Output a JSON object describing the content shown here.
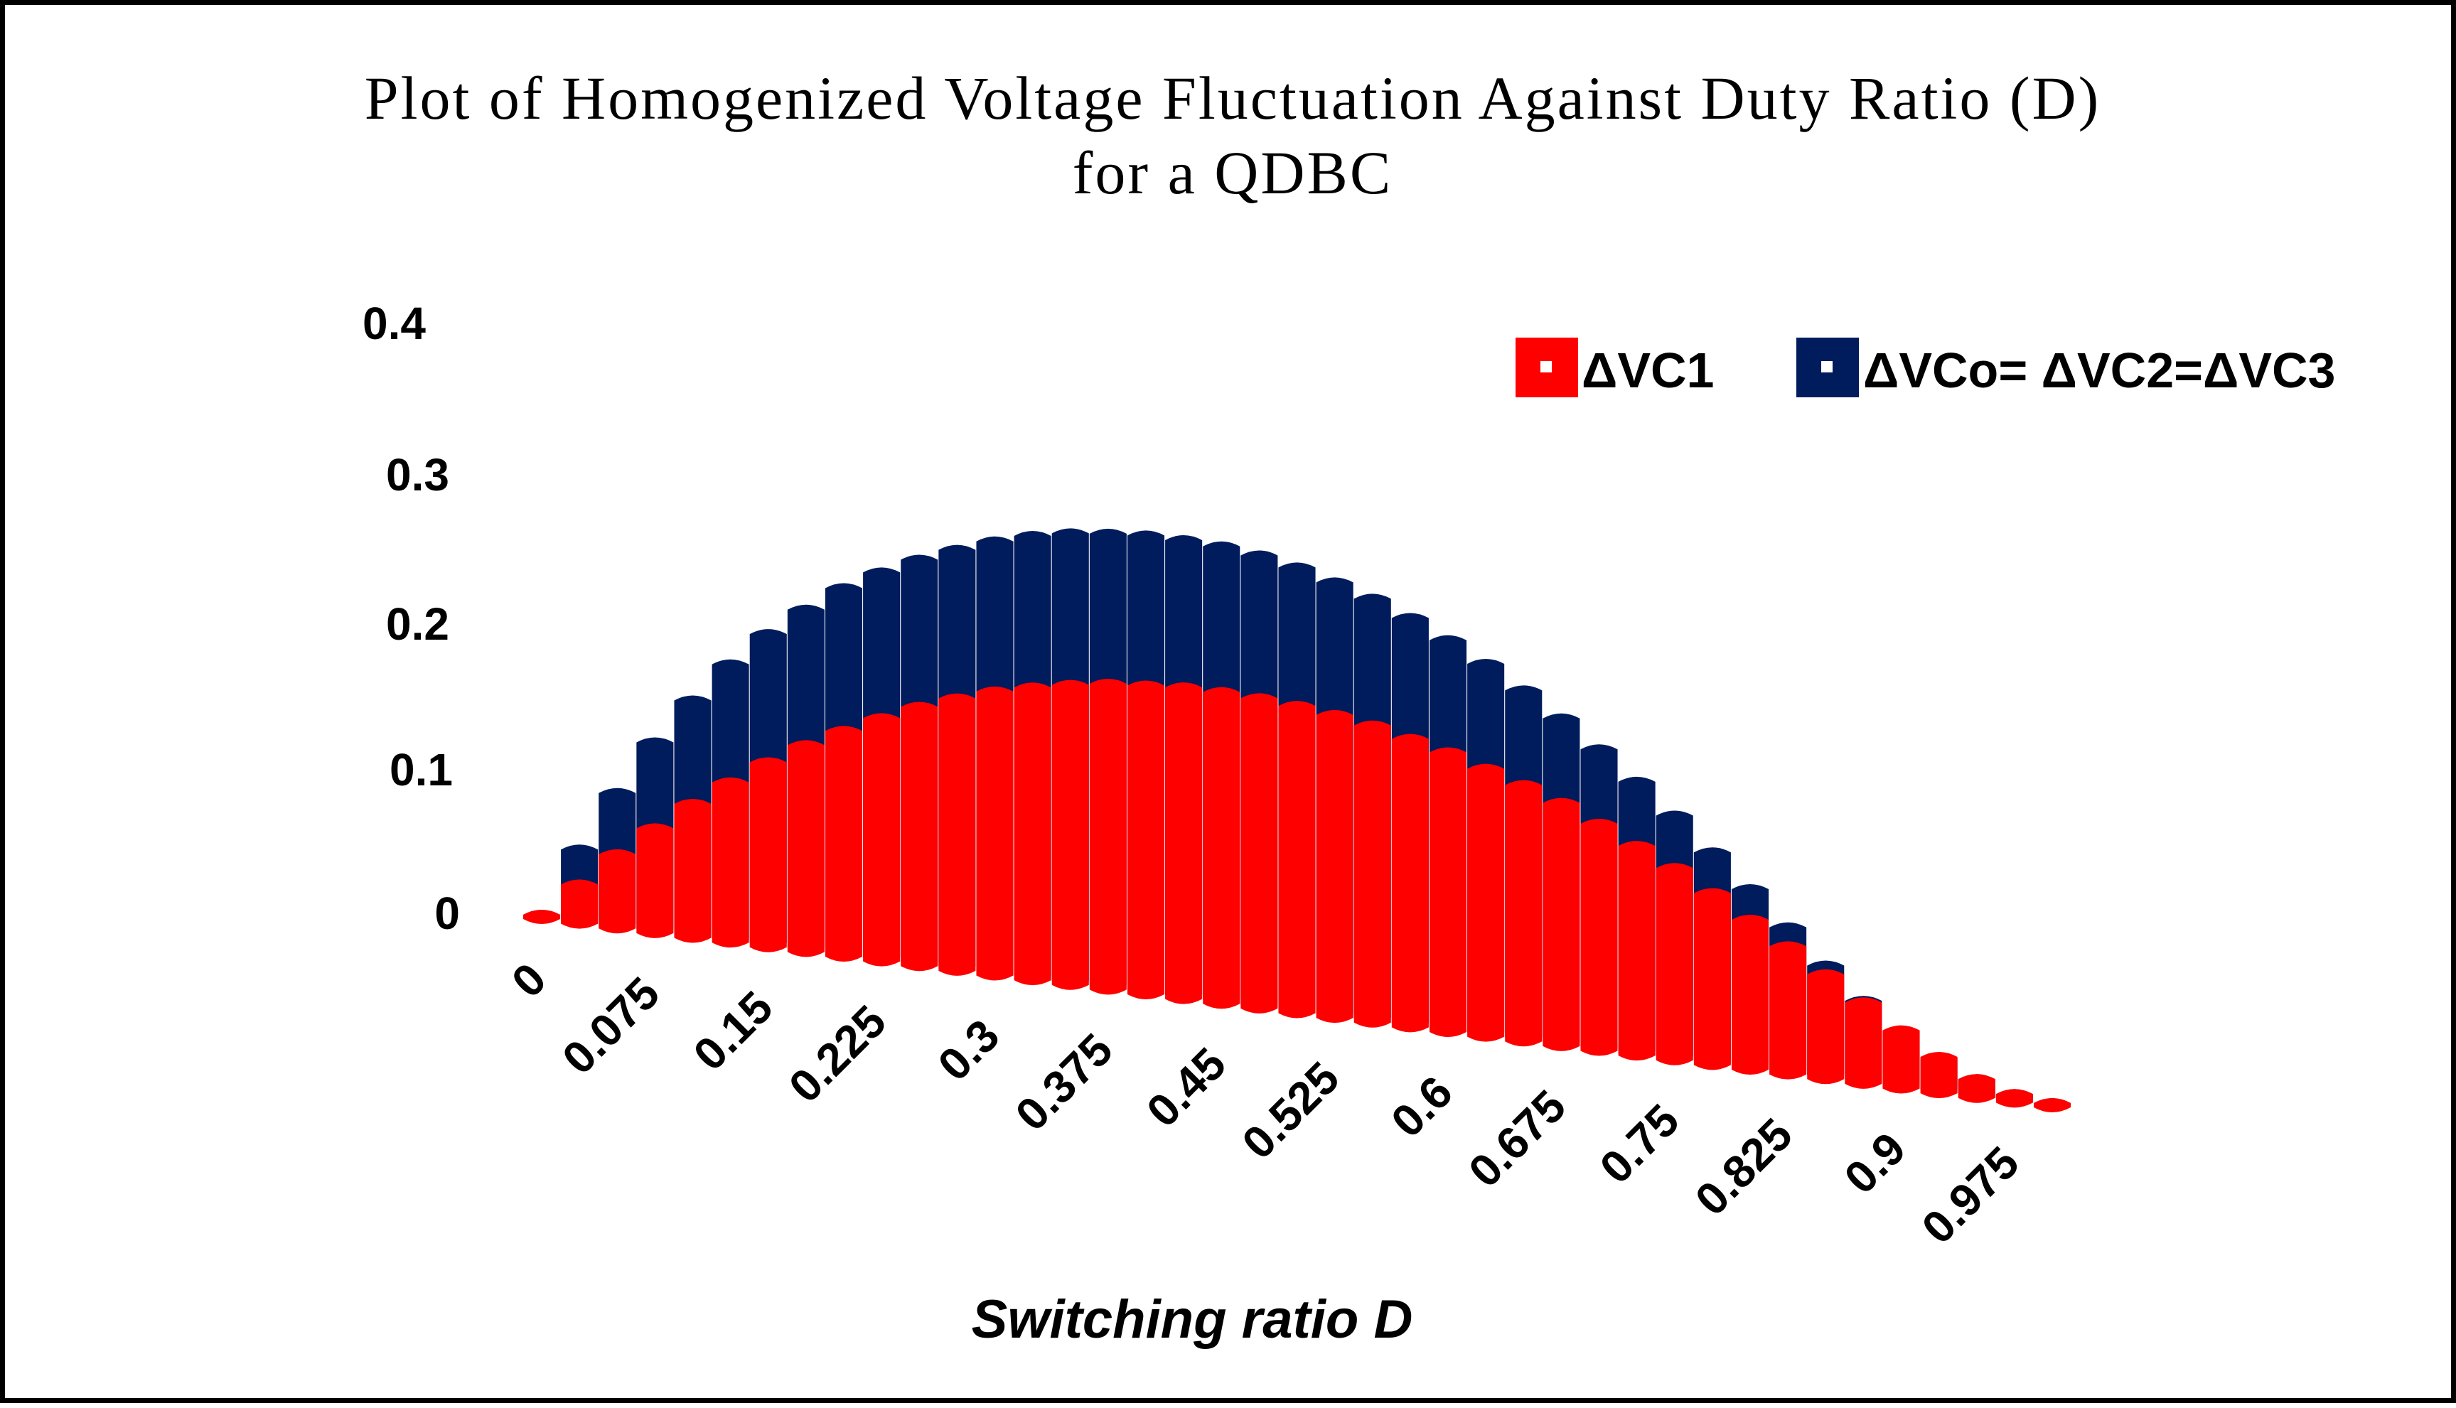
{
  "chart_data": {
    "type": "bar",
    "variant": "3d-column",
    "title": "Plot of Homogenized Voltage Fluctuation Against Duty Ratio (D)",
    "subtitle": "for a QDBC",
    "xlabel": "Switching ratio D",
    "ylabel": "",
    "ylim": [
      0,
      0.4
    ],
    "yticks": [
      "0",
      "0.1",
      "0.2",
      "0.3",
      "0.4"
    ],
    "legend_position": "top-right",
    "x_tick_labels": [
      "0",
      "0.075",
      "0.15",
      "0.225",
      "0.3",
      "0.375",
      "0.45",
      "0.525",
      "0.6",
      "0.675",
      "0.75",
      "0.825",
      "0.9",
      "0.975"
    ],
    "categories": [
      "0",
      "0.025",
      "0.05",
      "0.075",
      "0.1",
      "0.125",
      "0.15",
      "0.175",
      "0.2",
      "0.225",
      "0.25",
      "0.275",
      "0.3",
      "0.325",
      "0.35",
      "0.375",
      "0.4",
      "0.425",
      "0.45",
      "0.475",
      "0.5",
      "0.525",
      "0.55",
      "0.575",
      "0.6",
      "0.625",
      "0.65",
      "0.675",
      "0.7",
      "0.725",
      "0.75",
      "0.775",
      "0.8",
      "0.825",
      "0.85",
      "0.875",
      "0.9",
      "0.925",
      "0.95",
      "0.975",
      "1"
    ],
    "series": [
      {
        "name": "ΔVC1",
        "color": "#FF0000",
        "values": [
          0,
          0.024,
          0.048,
          0.069,
          0.089,
          0.107,
          0.124,
          0.139,
          0.152,
          0.164,
          0.175,
          0.184,
          0.192,
          0.198,
          0.203,
          0.207,
          0.209,
          0.211,
          0.211,
          0.21,
          0.208,
          0.205,
          0.201,
          0.195,
          0.189,
          0.181,
          0.173,
          0.164,
          0.153,
          0.141,
          0.129,
          0.115,
          0.1,
          0.085,
          0.069,
          0.053,
          0.037,
          0.022,
          0.01,
          0.003,
          0.0
        ]
      },
      {
        "name": "ΔVCo= ΔVC2=ΔVC3",
        "color": "#001C5C",
        "values": [
          0,
          0.048,
          0.09,
          0.128,
          0.16,
          0.188,
          0.212,
          0.232,
          0.25,
          0.264,
          0.276,
          0.286,
          0.295,
          0.302,
          0.307,
          0.31,
          0.312,
          0.312,
          0.311,
          0.308,
          0.303,
          0.296,
          0.288,
          0.278,
          0.266,
          0.253,
          0.238,
          0.222,
          0.204,
          0.185,
          0.165,
          0.143,
          0.121,
          0.098,
          0.075,
          0.054,
          0.036,
          0.021,
          0.01,
          0.003,
          0.0
        ]
      }
    ]
  }
}
